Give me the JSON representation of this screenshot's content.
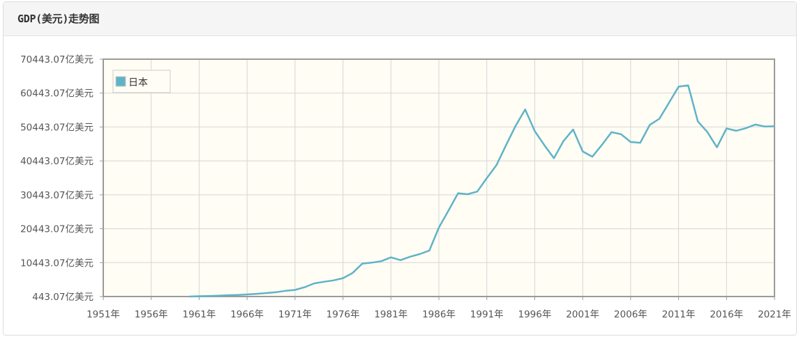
{
  "header": {
    "title": "GDP(美元)走势图"
  },
  "chart_data": {
    "type": "line",
    "title": "GDP(美元)走势图",
    "xlabel": "",
    "ylabel": "",
    "x_tick_labels": [
      "1951年",
      "1956年",
      "1961年",
      "1966年",
      "1971年",
      "1976年",
      "1981年",
      "1986年",
      "1991年",
      "1996年",
      "2001年",
      "2006年",
      "2011年",
      "2016年",
      "2021年"
    ],
    "y_tick_labels": [
      "443.07亿美元",
      "10443.07亿美元",
      "20443.07亿美元",
      "30443.07亿美元",
      "40443.07亿美元",
      "50443.07亿美元",
      "60443.07亿美元",
      "70443.07亿美元"
    ],
    "xlim": [
      1951,
      2021
    ],
    "ylim": [
      443.07,
      70443.07
    ],
    "unit": "亿美元",
    "grid": true,
    "legend_position": "top-left",
    "series": [
      {
        "name": "日本",
        "color": "#5fb3c8",
        "x": [
          1960,
          1961,
          1962,
          1963,
          1964,
          1965,
          1966,
          1967,
          1968,
          1969,
          1970,
          1971,
          1972,
          1973,
          1974,
          1975,
          1976,
          1977,
          1978,
          1979,
          1980,
          1981,
          1982,
          1983,
          1984,
          1985,
          1986,
          1987,
          1988,
          1989,
          1990,
          1991,
          1992,
          1993,
          1994,
          1995,
          1996,
          1997,
          1998,
          1999,
          2000,
          2001,
          2002,
          2003,
          2004,
          2005,
          2006,
          2007,
          2008,
          2009,
          2010,
          2011,
          2012,
          2013,
          2014,
          2015,
          2016,
          2017,
          2018,
          2019,
          2020,
          2021
        ],
        "values": [
          443,
          537,
          609,
          709,
          839,
          909,
          1061,
          1235,
          1461,
          1716,
          2127,
          2402,
          3184,
          4319,
          4800,
          5215,
          5857,
          7376,
          10140,
          10440,
          10870,
          12010,
          11170,
          12190,
          12960,
          13990,
          20790,
          25780,
          30910,
          30610,
          31390,
          35360,
          39170,
          45050,
          50750,
          55620,
          49230,
          45080,
          41230,
          46340,
          49680,
          43240,
          41690,
          45150,
          48910,
          48310,
          46010,
          45790,
          51060,
          52900,
          57590,
          62330,
          62720,
          52120,
          48960,
          44450,
          50020,
          49310,
          50080,
          51170,
          50580,
          50650
        ]
      }
    ]
  }
}
